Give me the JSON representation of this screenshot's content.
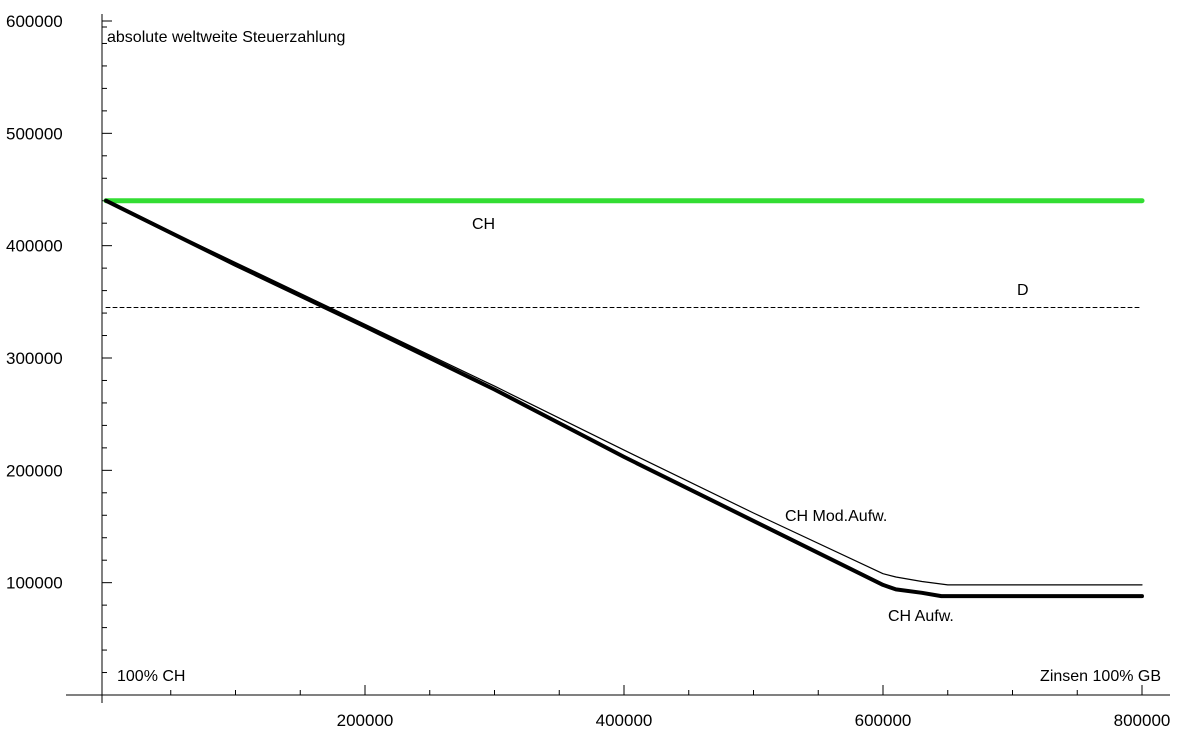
{
  "chart_data": {
    "type": "line",
    "ylabel": "absolute weltweite Steuerzahlung",
    "xlabel": "Zinsen 100% GB",
    "origin_label": "100% CH",
    "xlim": [
      0,
      800000
    ],
    "ylim": [
      0,
      600000
    ],
    "x_ticks": [
      200000,
      400000,
      600000,
      800000
    ],
    "y_ticks": [
      100000,
      200000,
      300000,
      400000,
      500000,
      600000
    ],
    "x_tick_labels": [
      "200000",
      "400000",
      "600000",
      "800000"
    ],
    "y_tick_labels": [
      "100000",
      "200000",
      "300000",
      "400000",
      "500000",
      "600000"
    ],
    "grid": false,
    "series": [
      {
        "name": "CH",
        "color": "#33dd33",
        "style": "thick",
        "x": [
          0,
          800000
        ],
        "y": [
          440000,
          440000
        ]
      },
      {
        "name": "D",
        "color": "#000000",
        "style": "dashed",
        "x": [
          0,
          800000
        ],
        "y": [
          345000,
          345000
        ]
      },
      {
        "name": "CH Mod.Aufw.",
        "color": "#000000",
        "style": "thin",
        "x": [
          0,
          100000,
          200000,
          300000,
          400000,
          500000,
          600000,
          610000,
          630000,
          650000,
          800000
        ],
        "y": [
          440000,
          385000,
          330000,
          275000,
          218000,
          162000,
          108000,
          105000,
          101000,
          98000,
          98000
        ]
      },
      {
        "name": "CH Aufw.",
        "color": "#000000",
        "style": "bold",
        "x": [
          0,
          100000,
          200000,
          300000,
          400000,
          500000,
          600000,
          610000,
          630000,
          645000,
          800000
        ],
        "y": [
          440000,
          383000,
          328000,
          272000,
          212000,
          155000,
          98000,
          94000,
          91000,
          88000,
          88000
        ]
      }
    ],
    "annotations": [
      {
        "text": "CH",
        "series": "CH"
      },
      {
        "text": "D",
        "series": "D"
      },
      {
        "text": "CH Mod.Aufw.",
        "series": "CH Mod.Aufw."
      },
      {
        "text": "CH Aufw.",
        "series": "CH Aufw."
      }
    ]
  }
}
